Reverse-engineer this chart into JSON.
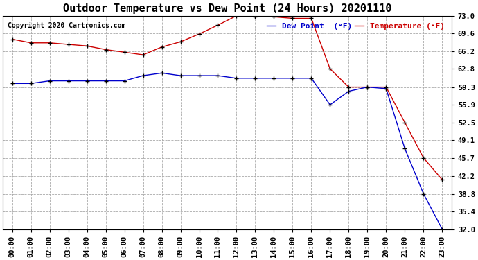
{
  "title": "Outdoor Temperature vs Dew Point (24 Hours) 20201110",
  "copyright": "Copyright 2020 Cartronics.com",
  "legend_dew": "Dew Point  (°F)",
  "legend_temp": "Temperature (°F)",
  "hours": [
    "00:00",
    "01:00",
    "02:00",
    "03:00",
    "04:00",
    "05:00",
    "06:00",
    "07:00",
    "08:00",
    "09:00",
    "10:00",
    "11:00",
    "12:00",
    "13:00",
    "14:00",
    "15:00",
    "16:00",
    "17:00",
    "18:00",
    "19:00",
    "20:00",
    "21:00",
    "22:00",
    "23:00"
  ],
  "temperature": [
    68.5,
    67.8,
    67.8,
    67.5,
    67.2,
    66.5,
    66.0,
    65.5,
    67.0,
    68.0,
    69.5,
    71.2,
    73.0,
    72.8,
    72.8,
    72.5,
    72.5,
    62.8,
    59.3,
    59.3,
    59.3,
    52.5,
    45.7,
    41.5
  ],
  "dew_point": [
    60.0,
    60.0,
    60.5,
    60.5,
    60.5,
    60.5,
    60.5,
    61.5,
    62.0,
    61.5,
    61.5,
    61.5,
    61.0,
    61.0,
    61.0,
    61.0,
    61.0,
    55.9,
    58.5,
    59.3,
    59.0,
    47.5,
    38.8,
    32.0
  ],
  "ylim_min": 32.0,
  "ylim_max": 73.0,
  "yticks": [
    32.0,
    35.4,
    38.8,
    42.2,
    45.7,
    49.1,
    52.5,
    55.9,
    59.3,
    62.8,
    66.2,
    69.6,
    73.0
  ],
  "temp_color": "#cc0000",
  "dew_color": "#0000cc",
  "bg_color": "#ffffff",
  "grid_color": "#aaaaaa",
  "title_fontsize": 11,
  "copyright_fontsize": 7,
  "label_fontsize": 8,
  "tick_fontsize": 7.5,
  "marker": "+"
}
